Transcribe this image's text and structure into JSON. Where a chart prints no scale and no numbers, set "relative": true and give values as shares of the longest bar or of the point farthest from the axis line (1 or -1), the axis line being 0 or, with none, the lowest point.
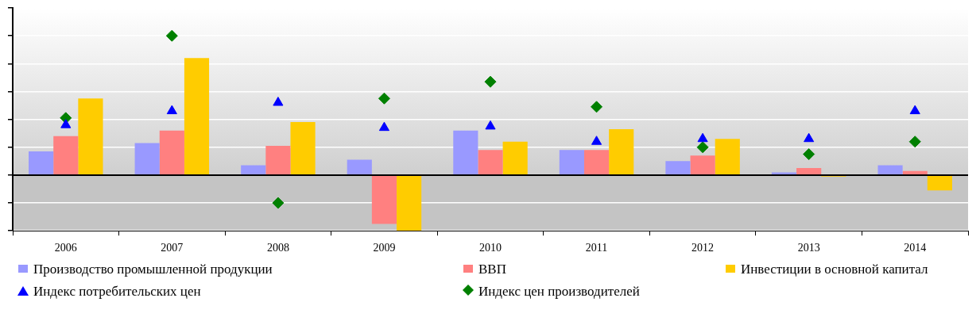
{
  "chart_data": {
    "type": "bar",
    "relative": true,
    "grid": "y",
    "legend": "bottom",
    "categories": [
      "2006",
      "2007",
      "2008",
      "2009",
      "2010",
      "2011",
      "2012",
      "2013",
      "2014"
    ],
    "series": [
      {
        "name": "Производство промышленной продукции",
        "color": "#9999ff",
        "values": [
          0.17,
          0.23,
          0.07,
          0.11,
          0.32,
          0.18,
          0.1,
          0.02,
          0.07
        ]
      },
      {
        "name": "ВВП",
        "color": "#ff8080",
        "values": [
          0.28,
          0.32,
          0.21,
          -0.35,
          0.18,
          0.18,
          0.14,
          0.05,
          0.03
        ]
      },
      {
        "name": "Инвестиции в основной капитал",
        "color": "#ffcc00",
        "values": [
          0.55,
          0.84,
          0.38,
          -0.4,
          0.24,
          0.33,
          0.26,
          -0.01,
          -0.11
        ]
      },
      {
        "name": "Индекс потребительских цен",
        "type": "scatter",
        "marker": "triangle",
        "color": "#0000ff",
        "values": [
          0.36,
          0.46,
          0.52,
          0.34,
          0.35,
          0.24,
          0.26,
          0.26,
          0.46
        ]
      },
      {
        "name": "Индекс цен производителей",
        "type": "scatter",
        "marker": "diamond",
        "color": "#008000",
        "values": [
          0.41,
          1,
          -0.2,
          0.55,
          0.67,
          0.49,
          0.2,
          0.15,
          0.24
        ]
      }
    ]
  }
}
